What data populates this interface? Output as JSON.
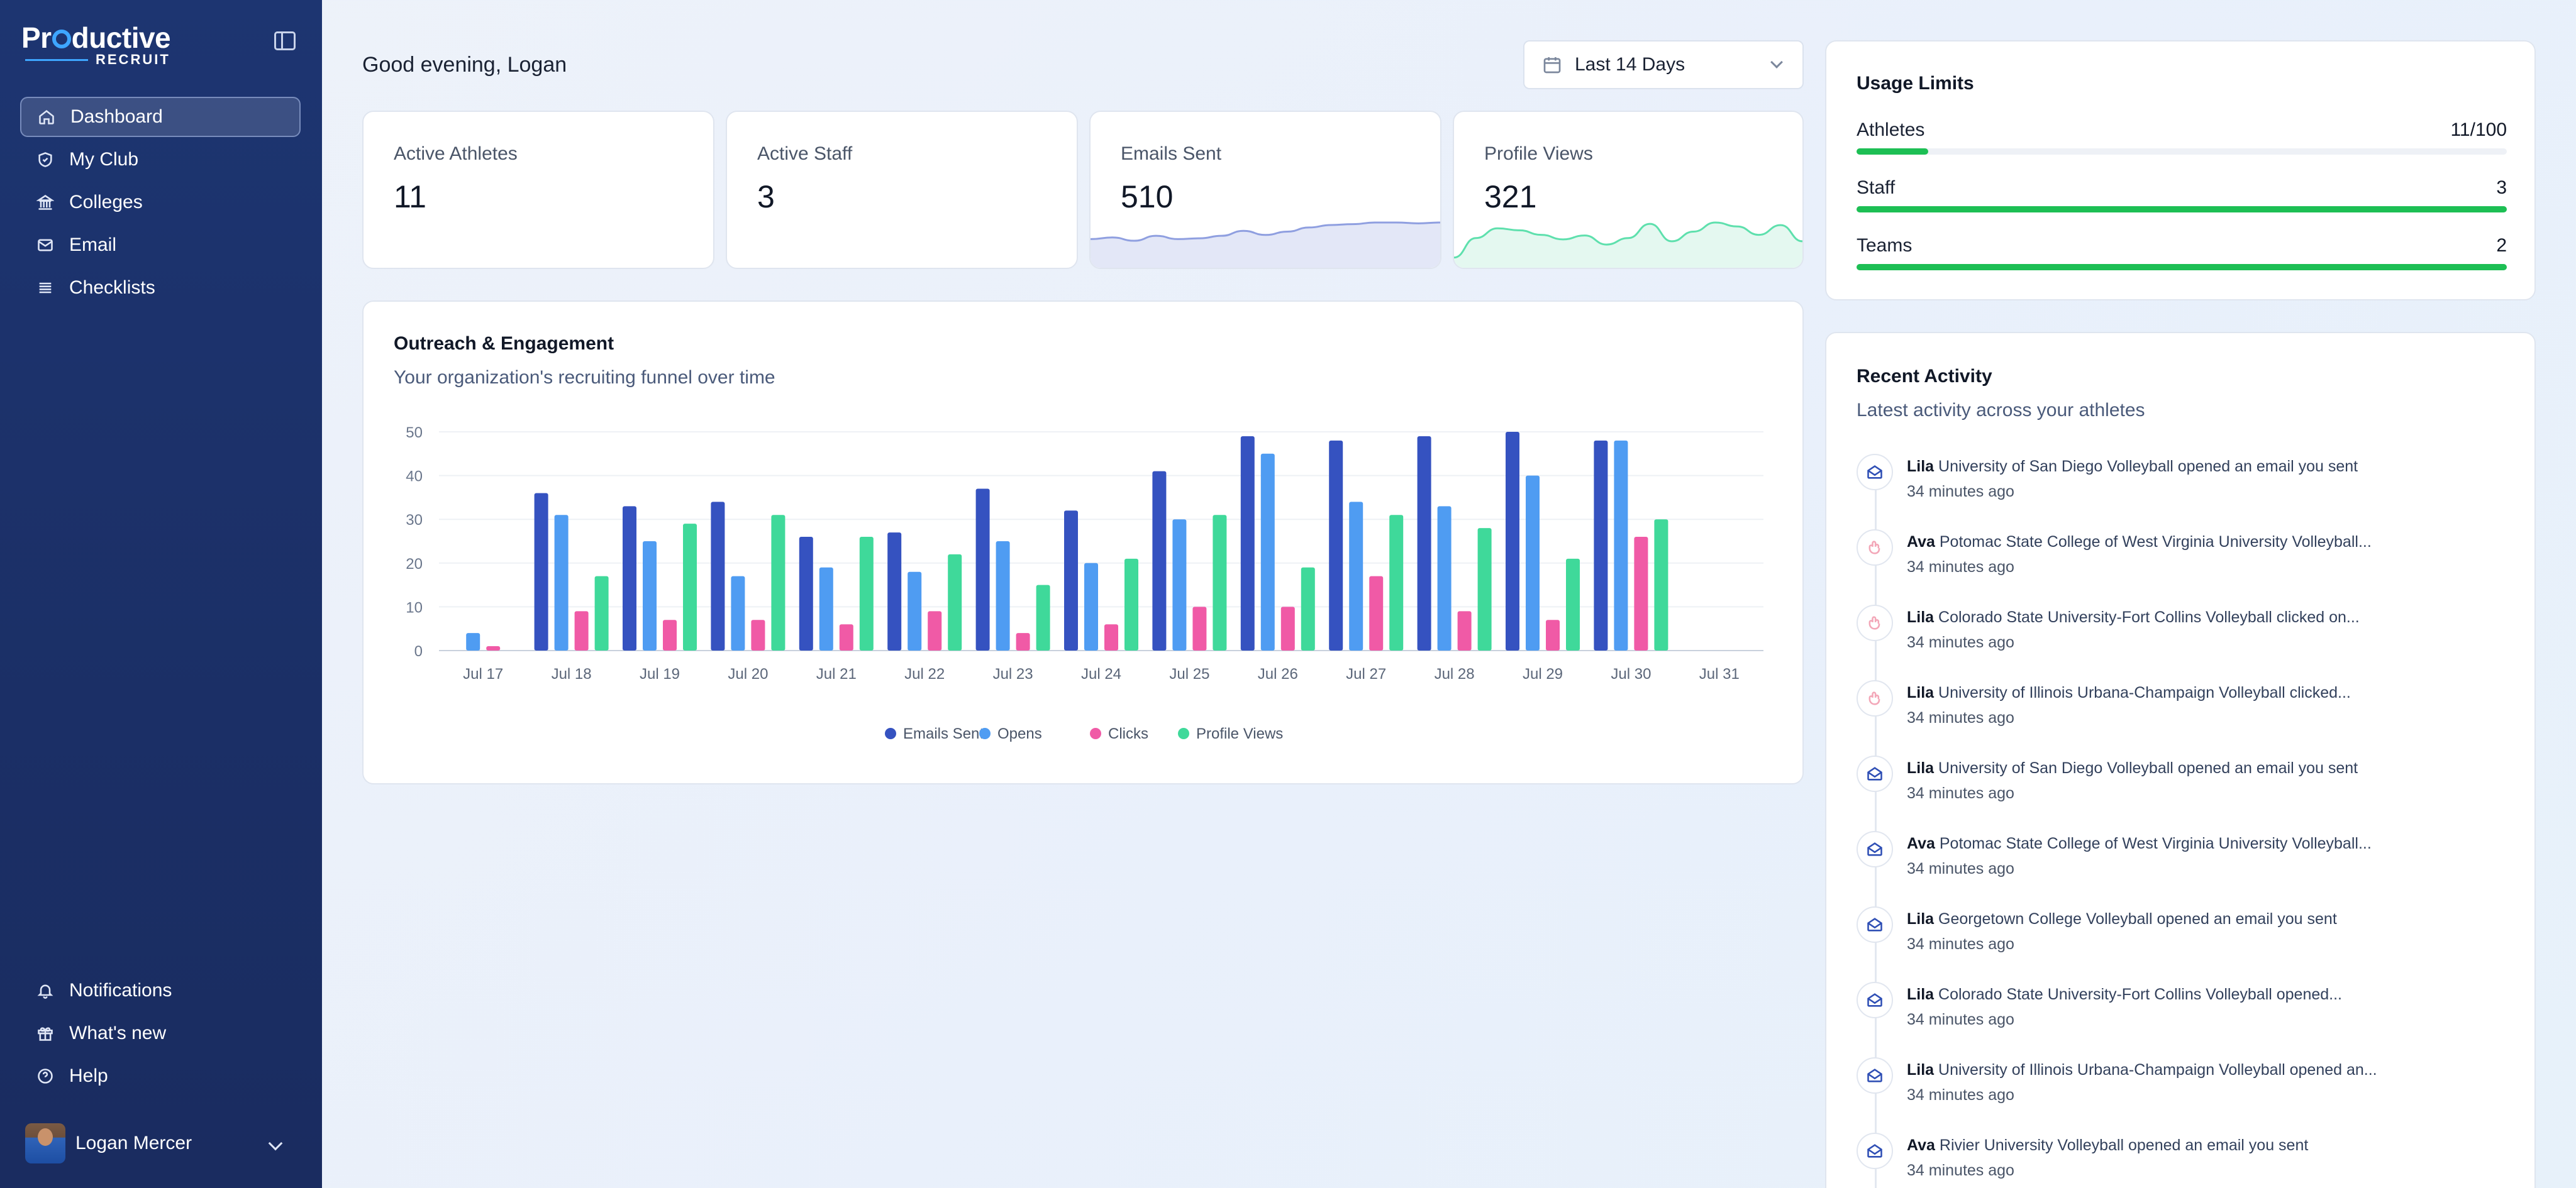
{
  "app": {
    "logo_main_a": "Pr",
    "logo_main_b": "ductive",
    "logo_sub": "RECRUIT"
  },
  "sidebar": {
    "items": [
      {
        "label": "Dashboard",
        "icon": "home-icon",
        "active": true
      },
      {
        "label": "My Club",
        "icon": "shield-icon"
      },
      {
        "label": "Colleges",
        "icon": "building-icon"
      },
      {
        "label": "Email",
        "icon": "mail-icon"
      },
      {
        "label": "Checklists",
        "icon": "list-icon"
      }
    ],
    "bottom": [
      {
        "label": "Notifications",
        "icon": "bell-icon"
      },
      {
        "label": "What's new",
        "icon": "gift-icon"
      },
      {
        "label": "Help",
        "icon": "help-icon"
      }
    ],
    "user": {
      "name": "Logan Mercer"
    }
  },
  "header": {
    "greeting": "Good evening, Logan",
    "date_range": "Last 14 Days"
  },
  "stats": [
    {
      "label": "Active Athletes",
      "value": "11"
    },
    {
      "label": "Active Staff",
      "value": "3"
    },
    {
      "label": "Emails Sent",
      "value": "510",
      "spark_color": "#8f9fe0",
      "spark_fill": "#e3e7f7",
      "spark": [
        30,
        32,
        28,
        34,
        30,
        31,
        34,
        40,
        35,
        39,
        44,
        47,
        48,
        50,
        50,
        49,
        50
      ]
    },
    {
      "label": "Profile Views",
      "value": "321",
      "spark_color": "#5ee0ad",
      "spark_fill": "#e4f8f0",
      "spark": [
        10,
        40,
        55,
        52,
        45,
        38,
        44,
        30,
        40,
        62,
        35,
        50,
        64,
        58,
        45,
        60,
        35
      ]
    }
  ],
  "usage": {
    "title": "Usage Limits",
    "rows": [
      {
        "name": "Athletes",
        "value": "11/100",
        "fraction": 0.11
      },
      {
        "name": "Staff",
        "value": "3",
        "fraction": 1.0
      },
      {
        "name": "Teams",
        "value": "2",
        "fraction": 1.0
      }
    ]
  },
  "activity": {
    "title": "Recent Activity",
    "subtitle": "Latest activity across your athletes",
    "items": [
      {
        "who": "Lila",
        "text": "University of San Diego Volleyball opened an email you sent",
        "time": "34 minutes ago",
        "kind": "email"
      },
      {
        "who": "Ava",
        "text": "Potomac State College of West Virginia University Volleyball...",
        "time": "34 minutes ago",
        "kind": "click"
      },
      {
        "who": "Lila",
        "text": "Colorado State University-Fort Collins Volleyball clicked on...",
        "time": "34 minutes ago",
        "kind": "click"
      },
      {
        "who": "Lila",
        "text": "University of Illinois Urbana-Champaign Volleyball clicked...",
        "time": "34 minutes ago",
        "kind": "click"
      },
      {
        "who": "Lila",
        "text": "University of San Diego Volleyball opened an email you sent",
        "time": "34 minutes ago",
        "kind": "email"
      },
      {
        "who": "Ava",
        "text": "Potomac State College of West Virginia University Volleyball...",
        "time": "34 minutes ago",
        "kind": "email"
      },
      {
        "who": "Lila",
        "text": "Georgetown College Volleyball opened an email you sent",
        "time": "34 minutes ago",
        "kind": "email"
      },
      {
        "who": "Lila",
        "text": "Colorado State University-Fort Collins Volleyball opened...",
        "time": "34 minutes ago",
        "kind": "email"
      },
      {
        "who": "Lila",
        "text": "University of Illinois Urbana-Champaign Volleyball opened an...",
        "time": "34 minutes ago",
        "kind": "email"
      },
      {
        "who": "Ava",
        "text": "Rivier University Volleyball opened an email you sent",
        "time": "34 minutes ago",
        "kind": "email"
      }
    ]
  },
  "chart_card": {
    "title": "Outreach & Engagement",
    "subtitle": "Your organization's recruiting funnel over time"
  },
  "chart_data": {
    "type": "bar",
    "categories": [
      "Jul 17",
      "Jul 18",
      "Jul 19",
      "Jul 20",
      "Jul 21",
      "Jul 22",
      "Jul 23",
      "Jul 24",
      "Jul 25",
      "Jul 26",
      "Jul 27",
      "Jul 28",
      "Jul 29",
      "Jul 30",
      "Jul 31"
    ],
    "ylim": [
      0,
      50
    ],
    "yticks": [
      0,
      10,
      20,
      30,
      40,
      50
    ],
    "grid": true,
    "legend_position": "bottom-center",
    "series": [
      {
        "name": "Emails Sent",
        "color": "#3552c0",
        "values": [
          0,
          36,
          33,
          34,
          26,
          27,
          37,
          32,
          41,
          49,
          48,
          49,
          50,
          48,
          0
        ]
      },
      {
        "name": "Opens",
        "color": "#4f9cf2",
        "values": [
          4,
          31,
          25,
          17,
          19,
          18,
          25,
          20,
          30,
          45,
          34,
          33,
          40,
          48,
          0
        ]
      },
      {
        "name": "Clicks",
        "color": "#f05aa6",
        "values": [
          1,
          9,
          7,
          7,
          6,
          9,
          4,
          6,
          10,
          10,
          17,
          9,
          7,
          26,
          0
        ]
      },
      {
        "name": "Profile Views",
        "color": "#3fd99a",
        "values": [
          0,
          17,
          29,
          31,
          26,
          22,
          15,
          21,
          31,
          19,
          31,
          28,
          21,
          30,
          0
        ]
      }
    ]
  }
}
